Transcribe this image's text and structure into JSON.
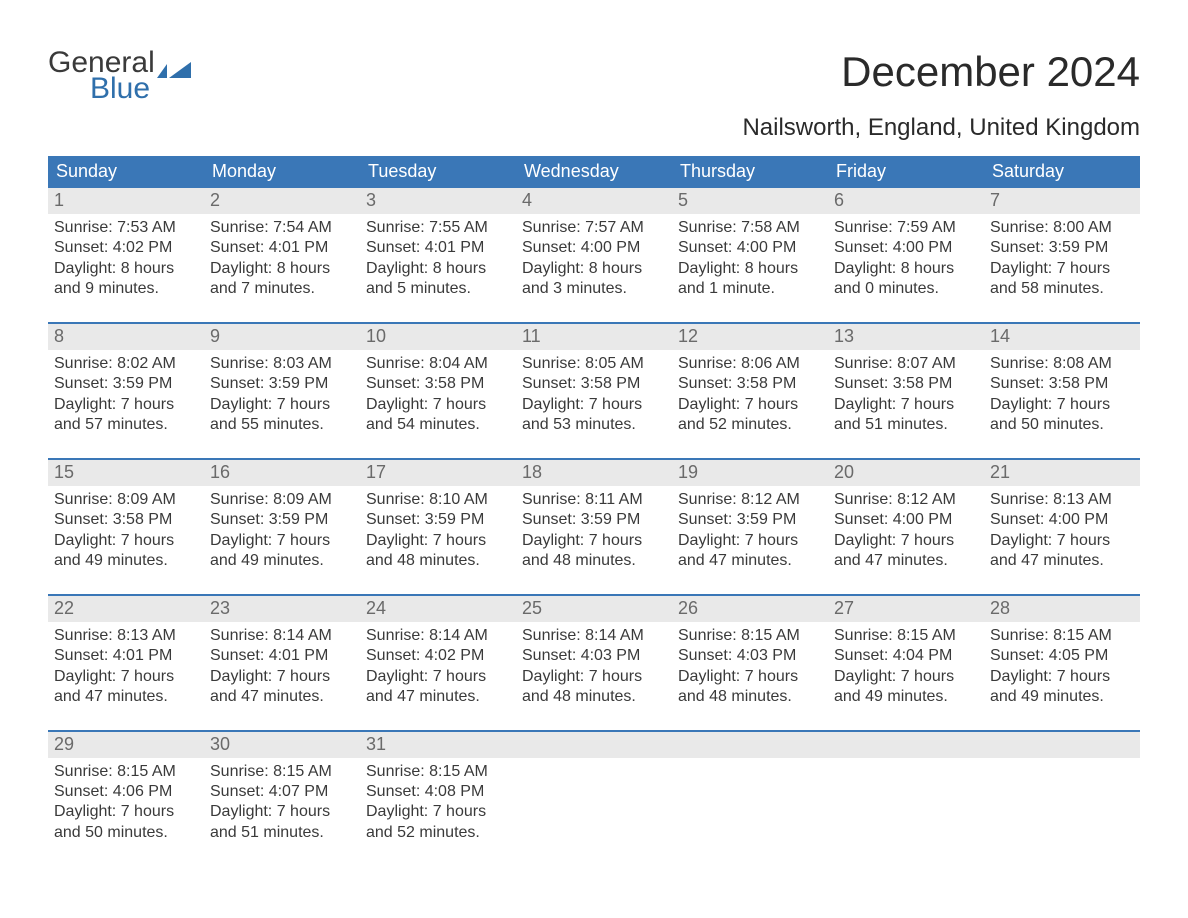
{
  "brand": {
    "word1": "General",
    "word2": "Blue",
    "flag_color": "#2f6fab"
  },
  "title": "December 2024",
  "location": "Nailsworth, England, United Kingdom",
  "colors": {
    "header_bg": "#3a77b7",
    "header_text": "#ffffff",
    "daynum_bg": "#e9e9e9",
    "daynum_text": "#6a6a6a",
    "body_text": "#3a3a3a",
    "week_divider": "#3a77b7",
    "page_bg": "#ffffff"
  },
  "typography": {
    "title_fontsize": 42,
    "location_fontsize": 24,
    "dow_fontsize": 18,
    "daynum_fontsize": 18,
    "body_fontsize": 16
  },
  "days_of_week": [
    "Sunday",
    "Monday",
    "Tuesday",
    "Wednesday",
    "Thursday",
    "Friday",
    "Saturday"
  ],
  "weeks": [
    [
      {
        "n": "1",
        "sunrise": "Sunrise: 7:53 AM",
        "sunset": "Sunset: 4:02 PM",
        "dl1": "Daylight: 8 hours",
        "dl2": "and 9 minutes."
      },
      {
        "n": "2",
        "sunrise": "Sunrise: 7:54 AM",
        "sunset": "Sunset: 4:01 PM",
        "dl1": "Daylight: 8 hours",
        "dl2": "and 7 minutes."
      },
      {
        "n": "3",
        "sunrise": "Sunrise: 7:55 AM",
        "sunset": "Sunset: 4:01 PM",
        "dl1": "Daylight: 8 hours",
        "dl2": "and 5 minutes."
      },
      {
        "n": "4",
        "sunrise": "Sunrise: 7:57 AM",
        "sunset": "Sunset: 4:00 PM",
        "dl1": "Daylight: 8 hours",
        "dl2": "and 3 minutes."
      },
      {
        "n": "5",
        "sunrise": "Sunrise: 7:58 AM",
        "sunset": "Sunset: 4:00 PM",
        "dl1": "Daylight: 8 hours",
        "dl2": "and 1 minute."
      },
      {
        "n": "6",
        "sunrise": "Sunrise: 7:59 AM",
        "sunset": "Sunset: 4:00 PM",
        "dl1": "Daylight: 8 hours",
        "dl2": "and 0 minutes."
      },
      {
        "n": "7",
        "sunrise": "Sunrise: 8:00 AM",
        "sunset": "Sunset: 3:59 PM",
        "dl1": "Daylight: 7 hours",
        "dl2": "and 58 minutes."
      }
    ],
    [
      {
        "n": "8",
        "sunrise": "Sunrise: 8:02 AM",
        "sunset": "Sunset: 3:59 PM",
        "dl1": "Daylight: 7 hours",
        "dl2": "and 57 minutes."
      },
      {
        "n": "9",
        "sunrise": "Sunrise: 8:03 AM",
        "sunset": "Sunset: 3:59 PM",
        "dl1": "Daylight: 7 hours",
        "dl2": "and 55 minutes."
      },
      {
        "n": "10",
        "sunrise": "Sunrise: 8:04 AM",
        "sunset": "Sunset: 3:58 PM",
        "dl1": "Daylight: 7 hours",
        "dl2": "and 54 minutes."
      },
      {
        "n": "11",
        "sunrise": "Sunrise: 8:05 AM",
        "sunset": "Sunset: 3:58 PM",
        "dl1": "Daylight: 7 hours",
        "dl2": "and 53 minutes."
      },
      {
        "n": "12",
        "sunrise": "Sunrise: 8:06 AM",
        "sunset": "Sunset: 3:58 PM",
        "dl1": "Daylight: 7 hours",
        "dl2": "and 52 minutes."
      },
      {
        "n": "13",
        "sunrise": "Sunrise: 8:07 AM",
        "sunset": "Sunset: 3:58 PM",
        "dl1": "Daylight: 7 hours",
        "dl2": "and 51 minutes."
      },
      {
        "n": "14",
        "sunrise": "Sunrise: 8:08 AM",
        "sunset": "Sunset: 3:58 PM",
        "dl1": "Daylight: 7 hours",
        "dl2": "and 50 minutes."
      }
    ],
    [
      {
        "n": "15",
        "sunrise": "Sunrise: 8:09 AM",
        "sunset": "Sunset: 3:58 PM",
        "dl1": "Daylight: 7 hours",
        "dl2": "and 49 minutes."
      },
      {
        "n": "16",
        "sunrise": "Sunrise: 8:09 AM",
        "sunset": "Sunset: 3:59 PM",
        "dl1": "Daylight: 7 hours",
        "dl2": "and 49 minutes."
      },
      {
        "n": "17",
        "sunrise": "Sunrise: 8:10 AM",
        "sunset": "Sunset: 3:59 PM",
        "dl1": "Daylight: 7 hours",
        "dl2": "and 48 minutes."
      },
      {
        "n": "18",
        "sunrise": "Sunrise: 8:11 AM",
        "sunset": "Sunset: 3:59 PM",
        "dl1": "Daylight: 7 hours",
        "dl2": "and 48 minutes."
      },
      {
        "n": "19",
        "sunrise": "Sunrise: 8:12 AM",
        "sunset": "Sunset: 3:59 PM",
        "dl1": "Daylight: 7 hours",
        "dl2": "and 47 minutes."
      },
      {
        "n": "20",
        "sunrise": "Sunrise: 8:12 AM",
        "sunset": "Sunset: 4:00 PM",
        "dl1": "Daylight: 7 hours",
        "dl2": "and 47 minutes."
      },
      {
        "n": "21",
        "sunrise": "Sunrise: 8:13 AM",
        "sunset": "Sunset: 4:00 PM",
        "dl1": "Daylight: 7 hours",
        "dl2": "and 47 minutes."
      }
    ],
    [
      {
        "n": "22",
        "sunrise": "Sunrise: 8:13 AM",
        "sunset": "Sunset: 4:01 PM",
        "dl1": "Daylight: 7 hours",
        "dl2": "and 47 minutes."
      },
      {
        "n": "23",
        "sunrise": "Sunrise: 8:14 AM",
        "sunset": "Sunset: 4:01 PM",
        "dl1": "Daylight: 7 hours",
        "dl2": "and 47 minutes."
      },
      {
        "n": "24",
        "sunrise": "Sunrise: 8:14 AM",
        "sunset": "Sunset: 4:02 PM",
        "dl1": "Daylight: 7 hours",
        "dl2": "and 47 minutes."
      },
      {
        "n": "25",
        "sunrise": "Sunrise: 8:14 AM",
        "sunset": "Sunset: 4:03 PM",
        "dl1": "Daylight: 7 hours",
        "dl2": "and 48 minutes."
      },
      {
        "n": "26",
        "sunrise": "Sunrise: 8:15 AM",
        "sunset": "Sunset: 4:03 PM",
        "dl1": "Daylight: 7 hours",
        "dl2": "and 48 minutes."
      },
      {
        "n": "27",
        "sunrise": "Sunrise: 8:15 AM",
        "sunset": "Sunset: 4:04 PM",
        "dl1": "Daylight: 7 hours",
        "dl2": "and 49 minutes."
      },
      {
        "n": "28",
        "sunrise": "Sunrise: 8:15 AM",
        "sunset": "Sunset: 4:05 PM",
        "dl1": "Daylight: 7 hours",
        "dl2": "and 49 minutes."
      }
    ],
    [
      {
        "n": "29",
        "sunrise": "Sunrise: 8:15 AM",
        "sunset": "Sunset: 4:06 PM",
        "dl1": "Daylight: 7 hours",
        "dl2": "and 50 minutes."
      },
      {
        "n": "30",
        "sunrise": "Sunrise: 8:15 AM",
        "sunset": "Sunset: 4:07 PM",
        "dl1": "Daylight: 7 hours",
        "dl2": "and 51 minutes."
      },
      {
        "n": "31",
        "sunrise": "Sunrise: 8:15 AM",
        "sunset": "Sunset: 4:08 PM",
        "dl1": "Daylight: 7 hours",
        "dl2": "and 52 minutes."
      },
      {
        "n": "",
        "sunrise": "",
        "sunset": "",
        "dl1": "",
        "dl2": ""
      },
      {
        "n": "",
        "sunrise": "",
        "sunset": "",
        "dl1": "",
        "dl2": ""
      },
      {
        "n": "",
        "sunrise": "",
        "sunset": "",
        "dl1": "",
        "dl2": ""
      },
      {
        "n": "",
        "sunrise": "",
        "sunset": "",
        "dl1": "",
        "dl2": ""
      }
    ]
  ]
}
